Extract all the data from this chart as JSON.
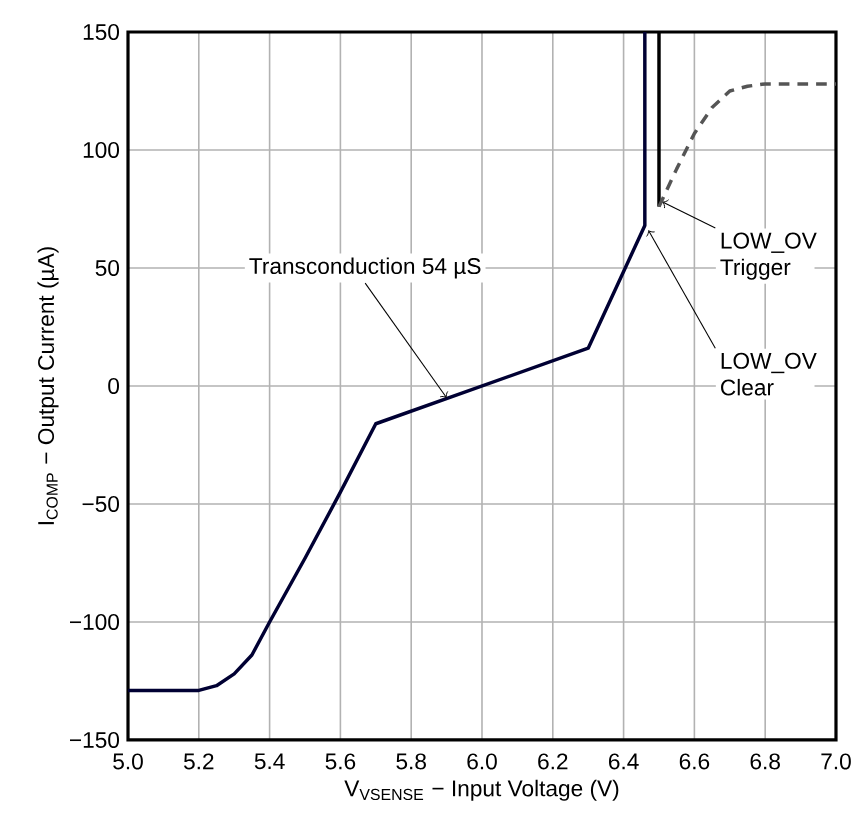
{
  "chart_data": {
    "type": "line",
    "xlabel": "V$_{VSENSE}$ − Input Voltage (V)",
    "ylabel": "I$_{COMP}$ − Output Current (µA)",
    "xlim": [
      5.0,
      7.0
    ],
    "ylim": [
      -150,
      150
    ],
    "xticks": [
      {
        "value": 5.0,
        "label": "5.0"
      },
      {
        "value": 5.2,
        "label": "5.2"
      },
      {
        "value": 5.4,
        "label": "5.4"
      },
      {
        "value": 5.6,
        "label": "5.6"
      },
      {
        "value": 5.8,
        "label": "5.8"
      },
      {
        "value": 6.0,
        "label": "6.0"
      },
      {
        "value": 6.2,
        "label": "6.2"
      },
      {
        "value": 6.4,
        "label": "6.4"
      },
      {
        "value": 6.6,
        "label": "6.6"
      },
      {
        "value": 6.8,
        "label": "6.8"
      },
      {
        "value": 7.0,
        "label": "7.0"
      }
    ],
    "yticks": [
      {
        "value": -150,
        "label": "−150"
      },
      {
        "value": -100,
        "label": "−100"
      },
      {
        "value": -50,
        "label": "−50"
      },
      {
        "value": 0,
        "label": "0"
      },
      {
        "value": 50,
        "label": "50"
      },
      {
        "value": 100,
        "label": "100"
      },
      {
        "value": 150,
        "label": "150"
      }
    ],
    "grid": true,
    "marker": "none",
    "series": [
      {
        "color": "#000033",
        "line_style": "solid",
        "x": [
          5.0,
          5.2,
          5.25,
          5.3,
          5.35,
          5.4,
          5.5,
          5.6,
          5.7,
          6.3,
          6.46,
          6.46
        ],
        "values": [
          -129,
          -129,
          -127,
          -122,
          -114,
          -100,
          -73,
          -45,
          -16,
          16,
          68,
          150
        ]
      },
      {
        "color": "#000000",
        "line_style": "solid",
        "x": [
          6.5,
          6.5
        ],
        "values": [
          76,
          150
        ]
      },
      {
        "color": "#555555",
        "line_style": "dashed",
        "x": [
          6.5,
          6.55,
          6.6,
          6.65,
          6.7,
          6.75,
          6.8,
          7.0
        ],
        "values": [
          76,
          92,
          107,
          118,
          125,
          127,
          128,
          128
        ]
      }
    ],
    "annotations": [
      {
        "text": "Transconduction 54 µS",
        "x": 5.9,
        "y": -5
      },
      {
        "text": "LOW_OV Trigger",
        "x": 6.51,
        "y": 78
      },
      {
        "text": "LOW_OV Clear",
        "x": 6.47,
        "y": 66
      }
    ]
  }
}
